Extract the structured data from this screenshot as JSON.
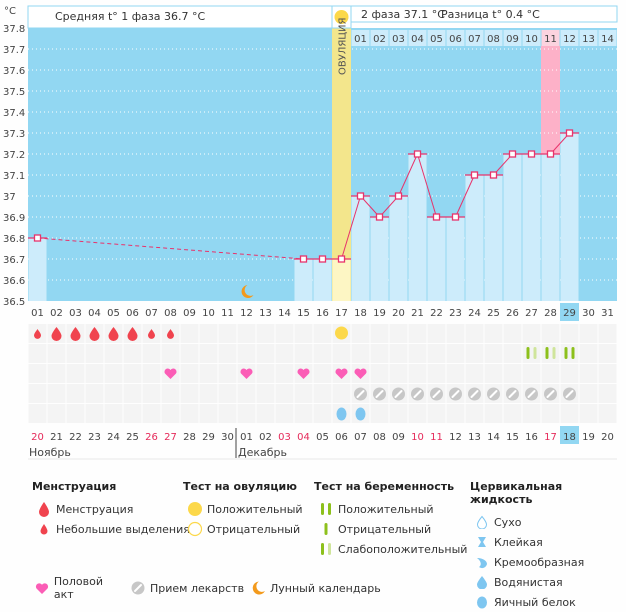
{
  "header": {
    "unit_label": "°C",
    "phase1_avg": "Средняя t° 1 фаза 36.7 °C",
    "phase2_avg": "2 фаза 37.1 °C",
    "diff": "Разница t° 0.4 °C",
    "ovulation_label": "ОВУЛЯЦИЯ"
  },
  "chart_data": {
    "type": "line",
    "title": "",
    "xlabel": "",
    "ylabel": "°C",
    "ylim": [
      36.5,
      37.8
    ],
    "yticks": [
      "37.8",
      "37.7",
      "37.6",
      "37.5",
      "37.4",
      "37.3",
      "37.2",
      "37.1",
      "37",
      "36.9",
      "36.8",
      "36.7",
      "36.6",
      "36.5"
    ],
    "cycle_days": [
      "01",
      "02",
      "03",
      "04",
      "05",
      "06",
      "07",
      "08",
      "09",
      "10",
      "11",
      "12",
      "13",
      "14",
      "15",
      "16",
      "17",
      "18",
      "19",
      "20",
      "21",
      "22",
      "23",
      "24",
      "25",
      "26",
      "27",
      "28",
      "29",
      "30",
      "31"
    ],
    "post_ovulation_days": [
      "01",
      "02",
      "03",
      "04",
      "05",
      "06",
      "07",
      "08",
      "09",
      "10",
      "11",
      "12",
      "13",
      "14"
    ],
    "calendar_dates": [
      "20",
      "21",
      "22",
      "23",
      "24",
      "25",
      "26",
      "27",
      "28",
      "29",
      "30",
      "01",
      "02",
      "03",
      "04",
      "05",
      "06",
      "07",
      "08",
      "09",
      "10",
      "11",
      "12",
      "13",
      "14",
      "15",
      "16",
      "17",
      "18",
      "19",
      "20"
    ],
    "weekend_dates_idx": [
      0,
      6,
      7,
      13,
      14,
      20,
      21,
      27
    ],
    "months": [
      {
        "label": "Ноябрь",
        "start_idx": 0
      },
      {
        "label": "Декабрь",
        "start_idx": 11
      }
    ],
    "today_idx": 28,
    "ovulation_day": 17,
    "highlight_post_ov_day": 11,
    "series": [
      {
        "name": "Базальная температура",
        "points": [
          {
            "day": 1,
            "value": 36.8
          },
          {
            "day": 15,
            "value": 36.7
          },
          {
            "day": 16,
            "value": 36.7
          },
          {
            "day": 17,
            "value": 36.7
          },
          {
            "day": 18,
            "value": 37.0
          },
          {
            "day": 19,
            "value": 36.9
          },
          {
            "day": 20,
            "value": 37.0
          },
          {
            "day": 21,
            "value": 37.2
          },
          {
            "day": 22,
            "value": 36.9
          },
          {
            "day": 23,
            "value": 36.9
          },
          {
            "day": 24,
            "value": 37.1
          },
          {
            "day": 25,
            "value": 37.1
          },
          {
            "day": 26,
            "value": 37.2
          },
          {
            "day": 27,
            "value": 37.2
          },
          {
            "day": 28,
            "value": 37.2
          },
          {
            "day": 29,
            "value": 37.3
          }
        ],
        "dashed_gap": [
          1,
          15
        ]
      }
    ],
    "markers": {
      "moon": [
        12
      ],
      "menstruation": [
        {
          "day": 1,
          "type": "light"
        },
        {
          "day": 2,
          "type": "heavy"
        },
        {
          "day": 3,
          "type": "heavy"
        },
        {
          "day": 4,
          "type": "heavy"
        },
        {
          "day": 5,
          "type": "heavy"
        },
        {
          "day": 6,
          "type": "heavy"
        },
        {
          "day": 7,
          "type": "light"
        },
        {
          "day": 8,
          "type": "light"
        }
      ],
      "ovulation_test": [
        {
          "day": 17,
          "result": "positive"
        }
      ],
      "pregnancy_test": [
        {
          "day": 27,
          "result": "weak"
        },
        {
          "day": 28,
          "result": "weak"
        },
        {
          "day": 29,
          "result": "positive"
        }
      ],
      "intercourse": [
        8,
        12,
        15,
        17,
        18
      ],
      "medication": [
        18,
        19,
        20,
        21,
        22,
        23,
        24,
        25,
        26,
        27,
        28,
        29
      ],
      "cervical_fluid": [
        {
          "day": 17,
          "type": "egg-white"
        },
        {
          "day": 18,
          "type": "egg-white"
        }
      ]
    }
  },
  "legend": {
    "menstruation": {
      "title": "Менструация",
      "items": [
        "Менструация",
        "Небольшие выделения"
      ]
    },
    "ovulation_test": {
      "title": "Тест на овуляцию",
      "items": [
        "Положительный",
        "Отрицательный"
      ]
    },
    "pregnancy_test": {
      "title": "Тест на беременность",
      "items": [
        "Положительный",
        "Отрицательный",
        "Слабоположительный"
      ]
    },
    "cervical_fluid": {
      "title": "Цервикальная жидкость",
      "items": [
        "Сухо",
        "Клейкая",
        "Кремообразная",
        "Водянистая",
        "Яичный белок"
      ]
    },
    "other": [
      "Половой акт",
      "Прием лекарств",
      "Лунный календарь"
    ]
  },
  "colors": {
    "plot_bg": "#92d7f2",
    "bar_fill": "#cdecfb",
    "line": "#e8336b",
    "ovulation": "#f3e68c",
    "highlight": "#fdb1c8",
    "blood": "#f0434e",
    "heart": "#fb5db6",
    "sun": "#fcd84a",
    "pill": "#c7c7c7",
    "test_dark": "#8dc01c",
    "test_light": "#cfe59b",
    "fluid": "#7ec6f0",
    "moon": "#f39a1c",
    "weekend": "#e52a5a"
  }
}
